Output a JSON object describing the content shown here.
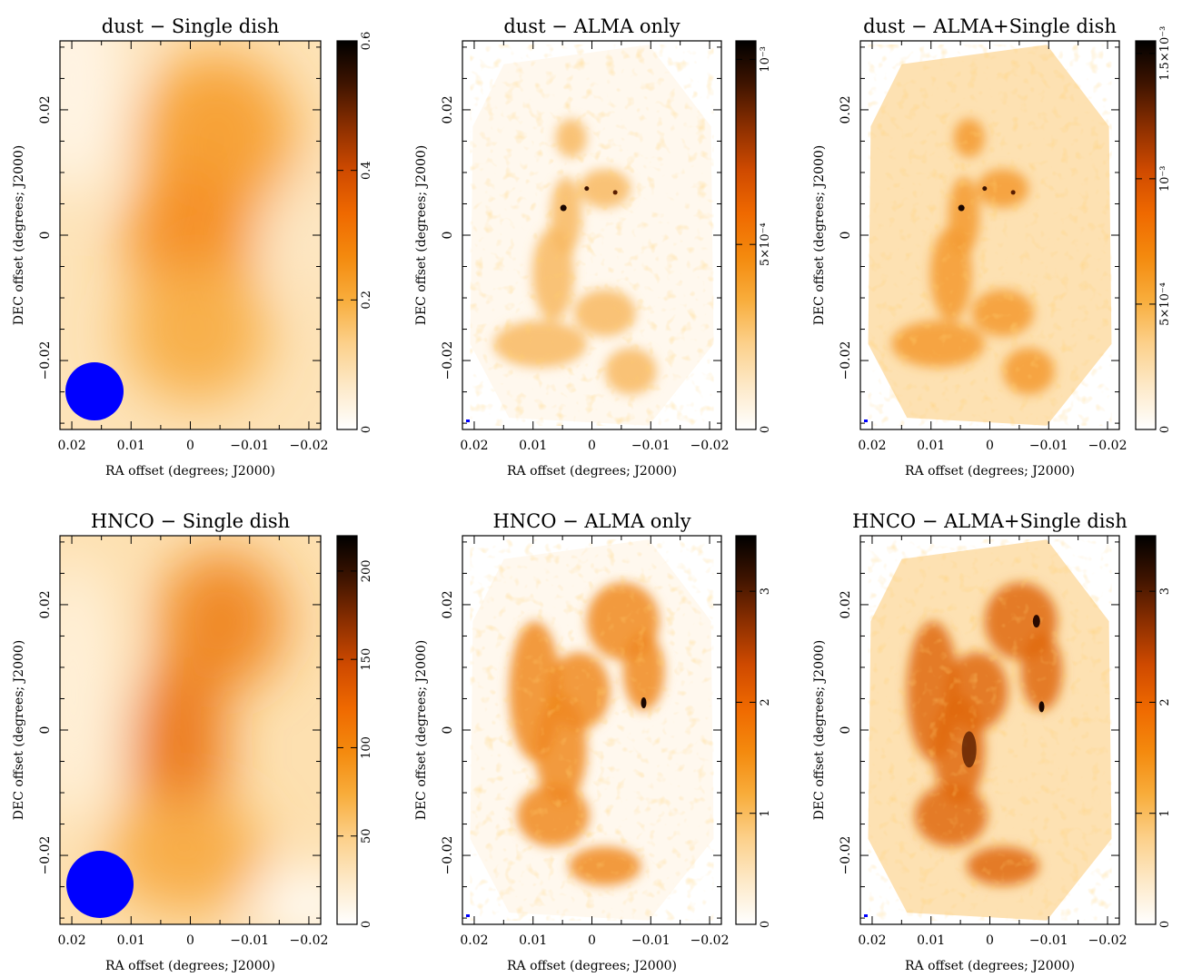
{
  "colors": {
    "colormap": [
      "#ffffff",
      "#fde9c8",
      "#fcd08a",
      "#f8ad3c",
      "#f48a0e",
      "#ef6900",
      "#cf4a00",
      "#8c2f00",
      "#3f1400",
      "#000000"
    ],
    "beam": "#0000ff"
  },
  "chart_data": [
    {
      "type": "heatmap",
      "title": "dust − Single dish",
      "xlabel": "RA offset (degrees; J2000)",
      "ylabel": "DEC offset (degrees; J2000)",
      "xlim": [
        0.022,
        -0.022
      ],
      "ylim": [
        -0.031,
        0.031
      ],
      "x_ticks": [
        "0.02",
        "0.01",
        "0",
        "−0.01",
        "−0.02"
      ],
      "y_ticks": [
        "−0.02",
        "0",
        "0.02"
      ],
      "colorbar": {
        "min": 0,
        "max": 0.6,
        "ticks": [
          "0",
          "0.2",
          "0.4",
          "0.6"
        ]
      },
      "beam": {
        "visible": true,
        "size": "large"
      }
    },
    {
      "type": "heatmap",
      "title": "dust − ALMA only",
      "xlabel": "RA offset (degrees; J2000)",
      "ylabel": "DEC offset (degrees; J2000)",
      "xlim": [
        0.022,
        -0.022
      ],
      "ylim": [
        -0.031,
        0.031
      ],
      "x_ticks": [
        "0.02",
        "0.01",
        "0",
        "−0.01",
        "−0.02"
      ],
      "y_ticks": [
        "−0.02",
        "0",
        "0.02"
      ],
      "colorbar": {
        "min": 0,
        "max": 0.00105,
        "ticks": [
          "0",
          "5×10⁻⁴",
          "10⁻³"
        ]
      },
      "beam": {
        "visible": true,
        "size": "small"
      }
    },
    {
      "type": "heatmap",
      "title": "dust − ALMA+Single dish",
      "xlabel": "RA offset (degrees; J2000)",
      "ylabel": "DEC offset (degrees; J2000)",
      "xlim": [
        0.022,
        -0.022
      ],
      "ylim": [
        -0.031,
        0.031
      ],
      "x_ticks": [
        "0.02",
        "0.01",
        "0",
        "−0.01",
        "−0.02"
      ],
      "y_ticks": [
        "−0.02",
        "0",
        "0.02"
      ],
      "colorbar": {
        "min": 0,
        "max": 0.00155,
        "ticks": [
          "0",
          "5×10⁻⁴",
          "10⁻³",
          "1.5×10⁻³"
        ]
      },
      "beam": {
        "visible": true,
        "size": "small"
      }
    },
    {
      "type": "heatmap",
      "title": "HNCO − Single dish",
      "xlabel": "RA offset (degrees; J2000)",
      "ylabel": "DEC offset (degrees; J2000)",
      "xlim": [
        0.022,
        -0.022
      ],
      "ylim": [
        -0.031,
        0.031
      ],
      "x_ticks": [
        "0.02",
        "0.01",
        "0",
        "−0.01",
        "−0.02"
      ],
      "y_ticks": [
        "−0.02",
        "0",
        "0.02"
      ],
      "colorbar": {
        "min": 0,
        "max": 220,
        "ticks": [
          "0",
          "50",
          "100",
          "150",
          "200"
        ]
      },
      "beam": {
        "visible": true,
        "size": "large"
      }
    },
    {
      "type": "heatmap",
      "title": "HNCO − ALMA only",
      "xlabel": "RA offset (degrees; J2000)",
      "ylabel": "DEC offset (degrees; J2000)",
      "xlim": [
        0.022,
        -0.022
      ],
      "ylim": [
        -0.031,
        0.031
      ],
      "x_ticks": [
        "0.02",
        "0.01",
        "0",
        "−0.01",
        "−0.02"
      ],
      "y_ticks": [
        "−0.02",
        "0",
        "0.02"
      ],
      "colorbar": {
        "min": 0,
        "max": 3.5,
        "ticks": [
          "0",
          "1",
          "2",
          "3"
        ]
      },
      "beam": {
        "visible": true,
        "size": "small"
      }
    },
    {
      "type": "heatmap",
      "title": "HNCO − ALMA+Single dish",
      "xlabel": "RA offset (degrees; J2000)",
      "ylabel": "DEC offset (degrees; J2000)",
      "xlim": [
        0.022,
        -0.022
      ],
      "ylim": [
        -0.031,
        0.031
      ],
      "x_ticks": [
        "0.02",
        "0.01",
        "0",
        "−0.01",
        "−0.02"
      ],
      "y_ticks": [
        "−0.02",
        "0",
        "0.02"
      ],
      "colorbar": {
        "min": 0,
        "max": 3.5,
        "ticks": [
          "0",
          "1",
          "2",
          "3"
        ]
      },
      "beam": {
        "visible": true,
        "size": "small"
      }
    }
  ]
}
